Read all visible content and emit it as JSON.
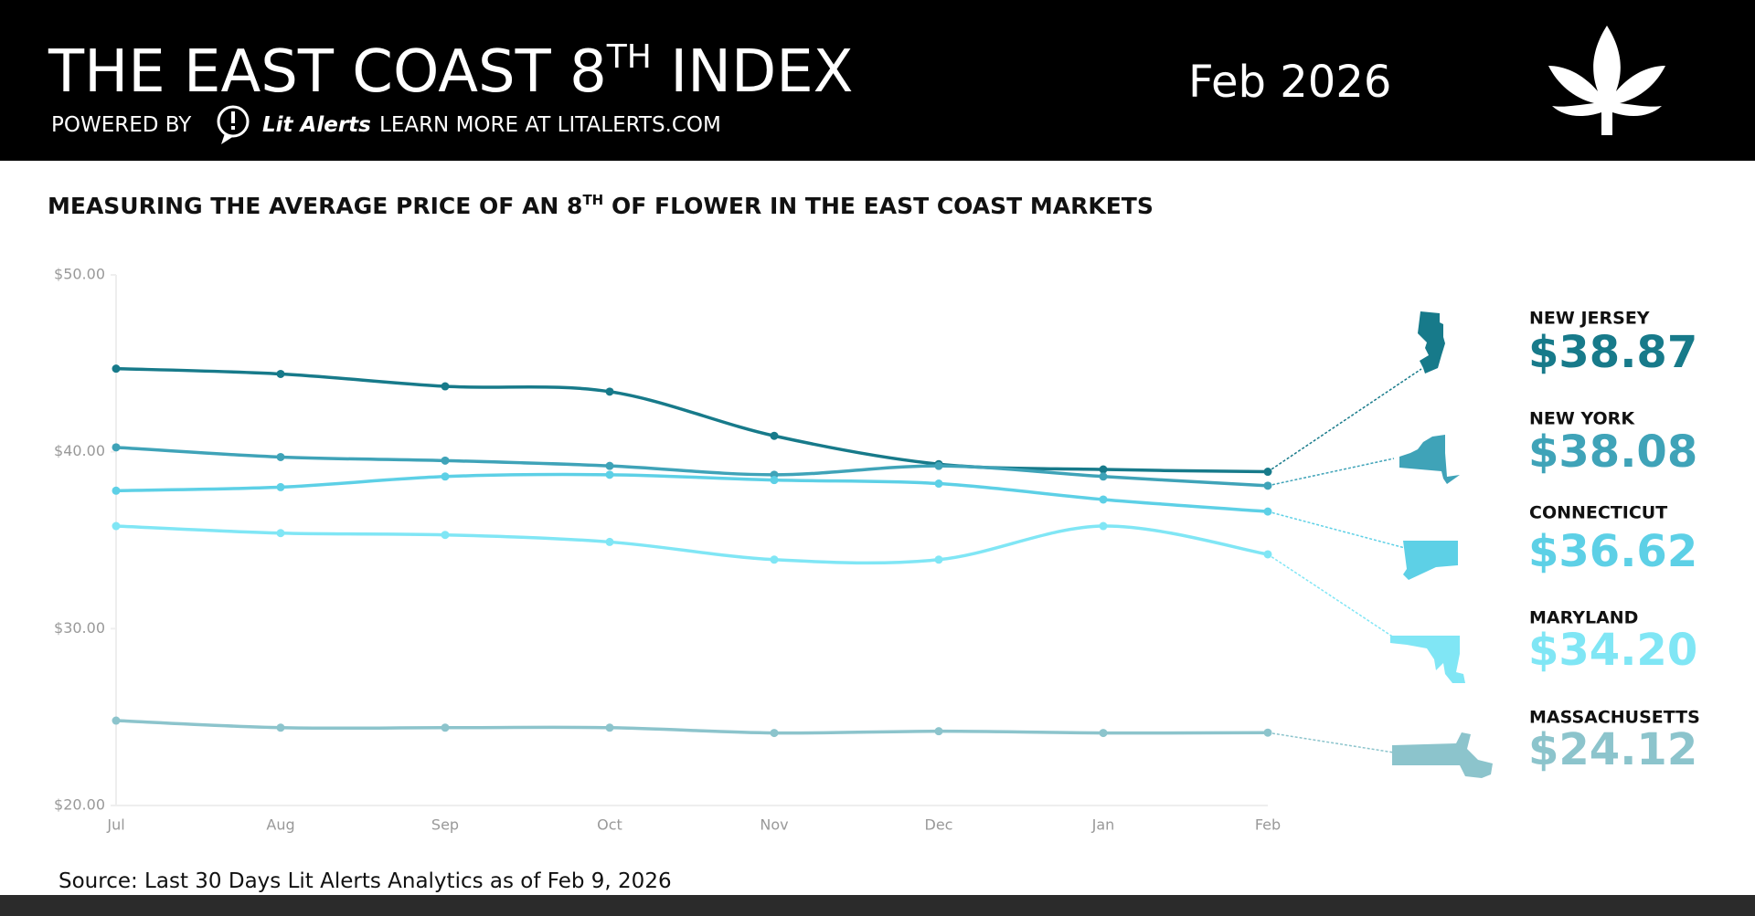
{
  "header": {
    "title_parts": [
      "THE EAST COAST 8",
      "TH",
      " INDEX"
    ],
    "date": "Feb 2026",
    "powered_by": "POWERED BY",
    "brand": "Lit Alerts",
    "learn_more": "LEARN MORE AT LITALERTS.COM"
  },
  "chart_data": {
    "type": "line",
    "subtitle_parts": [
      "MEASURING THE AVERAGE PRICE OF AN 8",
      "TH",
      " OF FLOWER IN THE EAST COAST MARKETS"
    ],
    "categories": [
      "Jul",
      "Aug",
      "Sep",
      "Oct",
      "Nov",
      "Dec",
      "Jan",
      "Feb"
    ],
    "ylim": [
      20,
      50
    ],
    "yticks": [
      {
        "value": 20,
        "label": "$20.00"
      },
      {
        "value": 30,
        "label": "$30.00"
      },
      {
        "value": 40,
        "label": "$40.00"
      },
      {
        "value": 50,
        "label": "$50.00"
      }
    ],
    "series": [
      {
        "name": "NEW JERSEY",
        "color": "#177a8a",
        "values": [
          44.7,
          44.4,
          43.7,
          43.4,
          40.9,
          39.3,
          39.0,
          38.87
        ],
        "value_labels": [
          null,
          null,
          null,
          null,
          null,
          null,
          null,
          "$38.87"
        ]
      },
      {
        "name": "NEW YORK",
        "color": "#3fa3b8",
        "values": [
          40.25,
          39.7,
          39.5,
          39.2,
          38.7,
          39.2,
          38.6,
          38.08
        ],
        "value_labels": [
          null,
          null,
          null,
          null,
          null,
          null,
          null,
          "$38.08"
        ]
      },
      {
        "name": "CONNECTICUT",
        "color": "#5dd0e6",
        "values": [
          37.8,
          38.0,
          38.6,
          38.7,
          38.4,
          38.2,
          37.3,
          36.62
        ],
        "value_labels": [
          null,
          null,
          null,
          null,
          null,
          null,
          null,
          "$36.62"
        ]
      },
      {
        "name": "MARYLAND",
        "color": "#80e6f5",
        "values": [
          35.8,
          35.4,
          35.3,
          34.9,
          33.9,
          33.9,
          35.8,
          34.2
        ],
        "value_labels": [
          null,
          null,
          null,
          null,
          null,
          null,
          null,
          "$34.20"
        ]
      },
      {
        "name": "MASSACHUSETTS",
        "color": "#8cc4cc",
        "values": [
          24.8,
          24.4,
          24.4,
          24.4,
          24.1,
          24.2,
          24.1,
          24.12
        ],
        "value_labels": [
          null,
          null,
          null,
          null,
          null,
          null,
          null,
          "$24.12"
        ]
      }
    ],
    "source": "Source: Last 30 Days Lit Alerts Analytics as of Feb 9, 2026"
  }
}
